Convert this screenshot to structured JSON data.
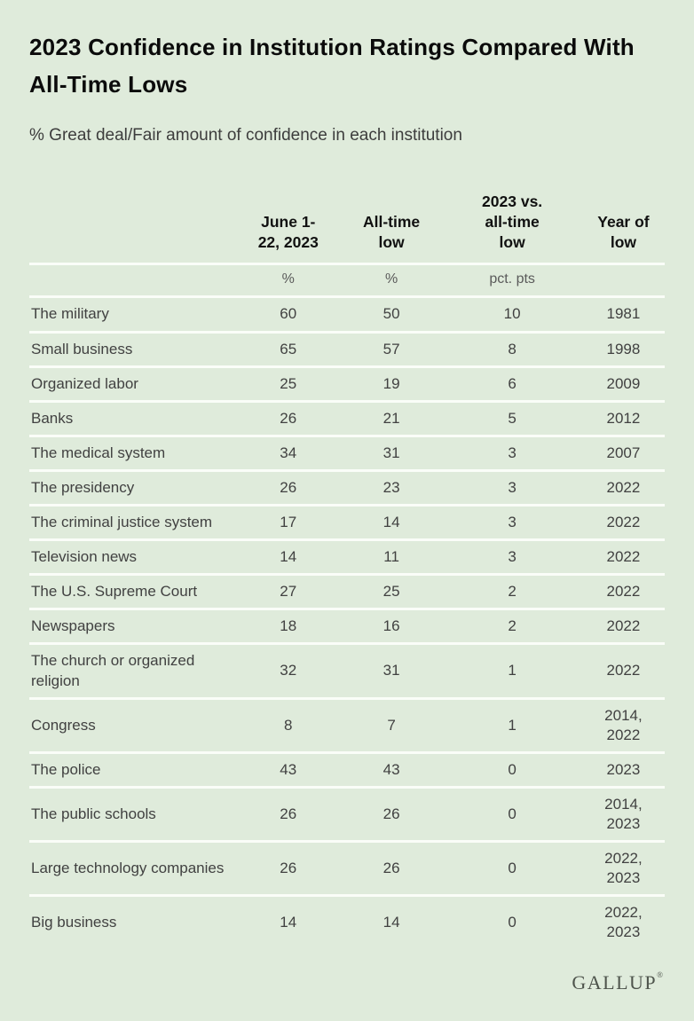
{
  "title": "2023 Confidence in Institution Ratings Compared With All-Time Lows",
  "subtitle": "% Great deal/Fair amount of confidence in each institution",
  "colors": {
    "bg": "#dfebdb",
    "separator": "#fafdf8",
    "title_text": "#0b0b0b",
    "subtitle_text": "#3d3d3d",
    "header_text": "#111111",
    "units_text": "#5a5a5a",
    "body_text": "#414141",
    "logo_text": "#4e544c"
  },
  "chart_data": {
    "type": "table",
    "title": "2023 Confidence in Institution Ratings Compared With All-Time Lows",
    "subtitle": "% Great deal/Fair amount of confidence in each institution",
    "columns": {
      "institution": "",
      "june_2023": "June 1-\n22, 2023",
      "all_time_low": "All-time\nlow",
      "vs_all_time_low": "2023 vs.\nall-time\nlow",
      "year_of_low": "Year of\nlow"
    },
    "units": {
      "institution": "",
      "june_2023": "%",
      "all_time_low": "%",
      "vs_all_time_low": "pct. pts",
      "year_of_low": ""
    },
    "rows": [
      {
        "institution": "The military",
        "june_2023": "60",
        "all_time_low": "50",
        "vs_all_time_low": "10",
        "year_of_low": "1981"
      },
      {
        "institution": "Small business",
        "june_2023": "65",
        "all_time_low": "57",
        "vs_all_time_low": "8",
        "year_of_low": "1998"
      },
      {
        "institution": "Organized labor",
        "june_2023": "25",
        "all_time_low": "19",
        "vs_all_time_low": "6",
        "year_of_low": "2009"
      },
      {
        "institution": "Banks",
        "june_2023": "26",
        "all_time_low": "21",
        "vs_all_time_low": "5",
        "year_of_low": "2012"
      },
      {
        "institution": "The medical system",
        "june_2023": "34",
        "all_time_low": "31",
        "vs_all_time_low": "3",
        "year_of_low": "2007"
      },
      {
        "institution": "The presidency",
        "june_2023": "26",
        "all_time_low": "23",
        "vs_all_time_low": "3",
        "year_of_low": "2022"
      },
      {
        "institution": "The criminal justice system",
        "june_2023": "17",
        "all_time_low": "14",
        "vs_all_time_low": "3",
        "year_of_low": "2022"
      },
      {
        "institution": "Television news",
        "june_2023": "14",
        "all_time_low": "11",
        "vs_all_time_low": "3",
        "year_of_low": "2022"
      },
      {
        "institution": "The U.S. Supreme Court",
        "june_2023": "27",
        "all_time_low": "25",
        "vs_all_time_low": "2",
        "year_of_low": "2022"
      },
      {
        "institution": "Newspapers",
        "june_2023": "18",
        "all_time_low": "16",
        "vs_all_time_low": "2",
        "year_of_low": "2022"
      },
      {
        "institution": "The church or organized religion",
        "june_2023": "32",
        "all_time_low": "31",
        "vs_all_time_low": "1",
        "year_of_low": "2022"
      },
      {
        "institution": "Congress",
        "june_2023": "8",
        "all_time_low": "7",
        "vs_all_time_low": "1",
        "year_of_low": "2014,\n2022"
      },
      {
        "institution": "The police",
        "june_2023": "43",
        "all_time_low": "43",
        "vs_all_time_low": "0",
        "year_of_low": "2023"
      },
      {
        "institution": "The public schools",
        "june_2023": "26",
        "all_time_low": "26",
        "vs_all_time_low": "0",
        "year_of_low": "2014,\n2023"
      },
      {
        "institution": "Large technology companies",
        "june_2023": "26",
        "all_time_low": "26",
        "vs_all_time_low": "0",
        "year_of_low": "2022,\n2023"
      },
      {
        "institution": "Big business",
        "june_2023": "14",
        "all_time_low": "14",
        "vs_all_time_low": "0",
        "year_of_low": "2022,\n2023"
      }
    ]
  },
  "footer": {
    "brand": "GALLUP",
    "mark": "®"
  }
}
